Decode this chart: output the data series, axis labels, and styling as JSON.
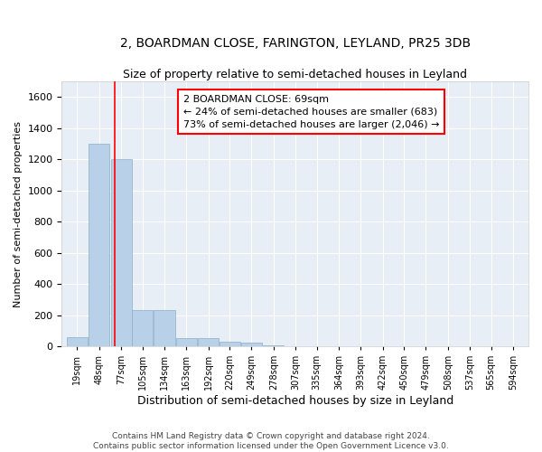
{
  "title": "2, BOARDMAN CLOSE, FARINGTON, LEYLAND, PR25 3DB",
  "subtitle": "Size of property relative to semi-detached houses in Leyland",
  "xlabel": "Distribution of semi-detached houses by size in Leyland",
  "ylabel": "Number of semi-detached properties",
  "bins": [
    19,
    48,
    77,
    105,
    134,
    163,
    192,
    220,
    249,
    278,
    307,
    335,
    364,
    393,
    422,
    450,
    479,
    508,
    537,
    565,
    594
  ],
  "values": [
    60,
    1300,
    1200,
    230,
    230,
    50,
    50,
    30,
    25,
    5,
    3,
    2,
    1,
    1,
    1,
    0,
    0,
    0,
    0,
    0
  ],
  "bar_color": "#b8d0e8",
  "bar_edge_color": "#8aafc8",
  "red_line_x": 69,
  "ylim": [
    0,
    1700
  ],
  "yticks": [
    0,
    200,
    400,
    600,
    800,
    1000,
    1200,
    1400,
    1600
  ],
  "annotation_line1": "2 BOARDMAN CLOSE: 69sqm",
  "annotation_line2": "← 24% of semi-detached houses are smaller (683)",
  "annotation_line3": "73% of semi-detached houses are larger (2,046) →",
  "footer_line1": "Contains HM Land Registry data © Crown copyright and database right 2024.",
  "footer_line2": "Contains public sector information licensed under the Open Government Licence v3.0.",
  "bg_color": "#e8eef5",
  "title_fontsize": 10,
  "subtitle_fontsize": 9,
  "annotation_fontsize": 8
}
